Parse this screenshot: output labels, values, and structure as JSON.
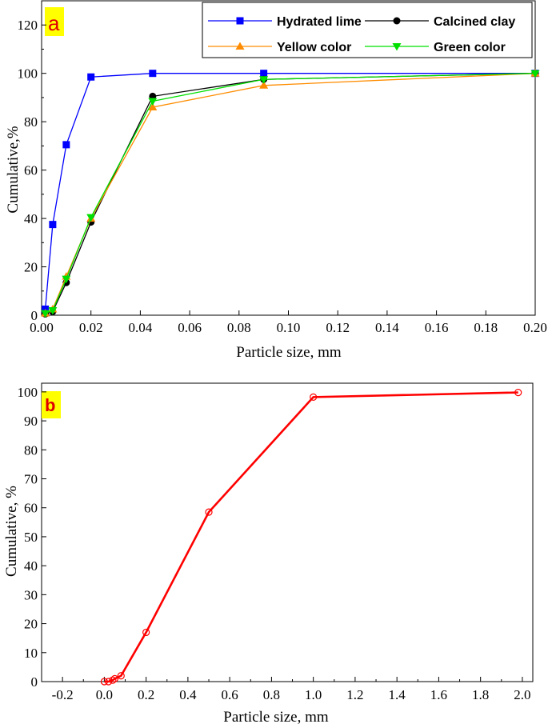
{
  "chart_data": [
    {
      "type": "line",
      "panel_label": "a",
      "title": "",
      "xlabel": "Particle size, mm",
      "ylabel": "Cumulative,%",
      "xlim": [
        0,
        0.2
      ],
      "ylim": [
        0,
        130
      ],
      "xticks": [
        "0.00",
        "0.02",
        "0.04",
        "0.06",
        "0.08",
        "0.10",
        "0.12",
        "0.14",
        "0.16",
        "0.18",
        "0.20"
      ],
      "yticks": [
        "0",
        "20",
        "40",
        "60",
        "80",
        "100",
        "120"
      ],
      "legend_position": "top-right",
      "series": [
        {
          "name": "Hydrated lime",
          "color": "#0000ff",
          "marker": "square",
          "points": [
            [
              0.0015,
              2.5
            ],
            [
              0.0045,
              37.5
            ],
            [
              0.01,
              70.5
            ],
            [
              0.02,
              98.5
            ],
            [
              0.045,
              100
            ],
            [
              0.09,
              100
            ],
            [
              0.2,
              100
            ]
          ]
        },
        {
          "name": "Calcined clay",
          "color": "#000000",
          "marker": "circle",
          "points": [
            [
              0.0015,
              0.5
            ],
            [
              0.0045,
              1.5
            ],
            [
              0.01,
              13.5
            ],
            [
              0.02,
              38.5
            ],
            [
              0.045,
              90.5
            ],
            [
              0.09,
              97.5
            ],
            [
              0.2,
              100
            ]
          ]
        },
        {
          "name": "Yellow color",
          "color": "#ff8c00",
          "marker": "triangle-up",
          "points": [
            [
              0.0015,
              0.8
            ],
            [
              0.0045,
              2.5
            ],
            [
              0.01,
              16
            ],
            [
              0.02,
              40
            ],
            [
              0.045,
              86
            ],
            [
              0.09,
              95
            ],
            [
              0.2,
              100
            ]
          ]
        },
        {
          "name": "Green color",
          "color": "#00e000",
          "marker": "triangle-down",
          "points": [
            [
              0.0015,
              0.8
            ],
            [
              0.0045,
              2
            ],
            [
              0.01,
              15
            ],
            [
              0.02,
              40.5
            ],
            [
              0.045,
              88.5
            ],
            [
              0.09,
              97.5
            ],
            [
              0.2,
              100
            ]
          ]
        }
      ]
    },
    {
      "type": "line",
      "panel_label": "b",
      "title": "",
      "xlabel": "Particle size, mm",
      "ylabel": "Cumulative, %",
      "xlim": [
        -0.3,
        2.05
      ],
      "ylim": [
        0,
        103
      ],
      "xticks": [
        "-0.2",
        "0.0",
        "0.2",
        "0.4",
        "0.6",
        "0.8",
        "1.0",
        "1.2",
        "1.4",
        "1.6",
        "1.8",
        "2.0"
      ],
      "yticks": [
        "0",
        "10",
        "20",
        "30",
        "40",
        "50",
        "60",
        "70",
        "80",
        "90",
        "100"
      ],
      "series": [
        {
          "color": "#ff0000",
          "marker": "open-circle",
          "points": [
            [
              0.0,
              0
            ],
            [
              0.02,
              0
            ],
            [
              0.04,
              0.5
            ],
            [
              0.05,
              1
            ],
            [
              0.08,
              2
            ],
            [
              0.2,
              17
            ],
            [
              0.5,
              58.5
            ],
            [
              1.0,
              98.2
            ],
            [
              1.98,
              99.8
            ]
          ]
        }
      ]
    }
  ],
  "colors": {
    "tag_background": "#ffff00",
    "tag_text": "#e00000",
    "frame": "#000000"
  }
}
